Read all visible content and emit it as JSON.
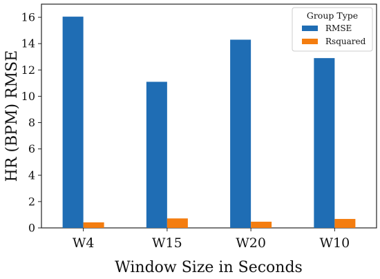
{
  "chart_data": {
    "type": "bar",
    "categories": [
      "W4",
      "W15",
      "W20",
      "W10"
    ],
    "series": [
      {
        "name": "RMSE",
        "values": [
          16.05,
          11.1,
          14.3,
          12.9
        ],
        "color": "#1f6db4"
      },
      {
        "name": "Rsquared",
        "values": [
          0.42,
          0.72,
          0.47,
          0.68
        ],
        "color": "#f47d10"
      }
    ],
    "title": "",
    "xlabel": "Window Size in Seconds",
    "ylabel": "HR (BPM) RMSE",
    "ylim": [
      0,
      17.0
    ],
    "yticks": [
      0,
      2,
      4,
      6,
      8,
      10,
      12,
      14,
      16
    ],
    "grid": false,
    "legend": {
      "title": "Group Type",
      "position": "top-right"
    }
  }
}
